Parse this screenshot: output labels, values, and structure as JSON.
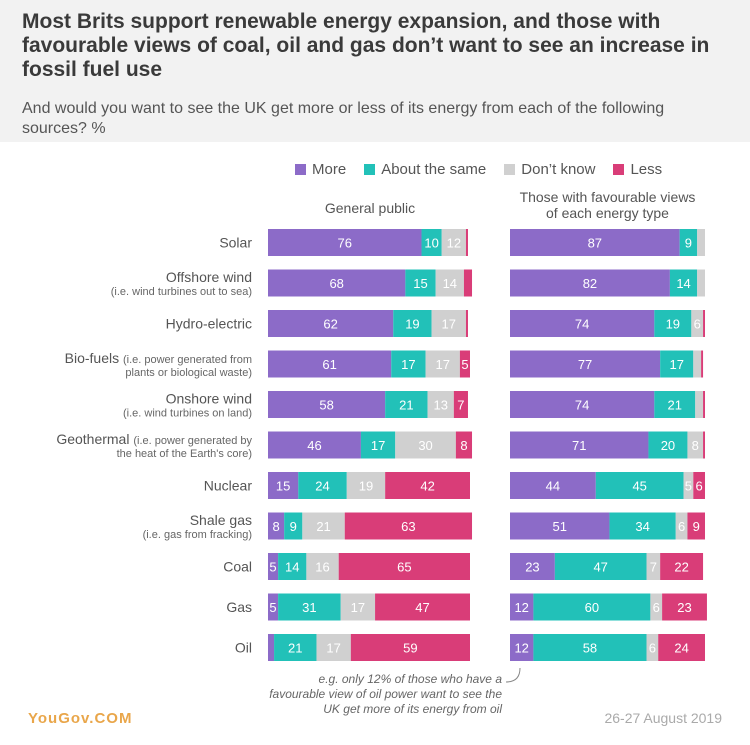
{
  "title": "Most Brits support renewable energy expansion, and those with favourable views of coal, oil and gas don’t want to see an increase in fossil fuel use",
  "subtitle": "And would you want to see the UK get more or less of its energy from each of the following sources? %",
  "legend": [
    {
      "label": "More",
      "color": "#8c6bc8"
    },
    {
      "label": "About the same",
      "color": "#22c1b8"
    },
    {
      "label": "Don’t know",
      "color": "#d0d0d0"
    },
    {
      "label": "Less",
      "color": "#d93d78"
    }
  ],
  "panel_left_title": "General public",
  "panel_right_title_line1": "Those with favourable views",
  "panel_right_title_line2": "of each energy type",
  "annotation": "e.g. only 12% of those who have a favourable view of oil power want to see the UK get more of its energy from oil",
  "footer": {
    "logo": "YouGov.COM",
    "date": "26-27 August 2019"
  },
  "chart_data": {
    "type": "bar",
    "stacked": true,
    "orientation": "horizontal",
    "categories": [
      {
        "name": "Solar",
        "sub": ""
      },
      {
        "name": "Offshore wind",
        "sub": "(i.e. wind turbines out to sea)"
      },
      {
        "name": "Hydro-electric",
        "sub": ""
      },
      {
        "name": "Bio-fuels",
        "sub": "(i.e. power generated from plants or biological waste)"
      },
      {
        "name": "Onshore wind",
        "sub": "(i.e. wind turbines on land)"
      },
      {
        "name": "Geothermal",
        "sub": "(i.e. power generated by the heat of the Earth's core)"
      },
      {
        "name": "Nuclear",
        "sub": ""
      },
      {
        "name": "Shale gas",
        "sub": "(i.e. gas from fracking)"
      },
      {
        "name": "Coal",
        "sub": ""
      },
      {
        "name": "Gas",
        "sub": ""
      },
      {
        "name": "Oil",
        "sub": ""
      }
    ],
    "series_order": [
      "More",
      "About the same",
      "Don’t know",
      "Less"
    ],
    "general_public": [
      [
        76,
        10,
        12,
        1
      ],
      [
        68,
        15,
        14,
        4
      ],
      [
        62,
        19,
        17,
        1
      ],
      [
        61,
        17,
        17,
        5
      ],
      [
        58,
        21,
        13,
        7
      ],
      [
        46,
        17,
        30,
        8
      ],
      [
        15,
        24,
        19,
        42
      ],
      [
        8,
        9,
        21,
        63
      ],
      [
        5,
        14,
        16,
        65
      ],
      [
        5,
        31,
        17,
        47
      ],
      [
        3,
        21,
        17,
        59
      ]
    ],
    "favourable_views": [
      [
        87,
        9,
        4,
        0
      ],
      [
        82,
        14,
        4,
        0
      ],
      [
        74,
        19,
        6,
        1
      ],
      [
        77,
        17,
        4,
        1
      ],
      [
        74,
        21,
        4,
        1
      ],
      [
        71,
        20,
        8,
        1
      ],
      [
        44,
        45,
        5,
        6
      ],
      [
        51,
        34,
        6,
        9
      ],
      [
        23,
        47,
        7,
        22
      ],
      [
        12,
        60,
        6,
        23
      ],
      [
        12,
        58,
        6,
        24
      ]
    ],
    "xlim": [
      0,
      100
    ]
  }
}
